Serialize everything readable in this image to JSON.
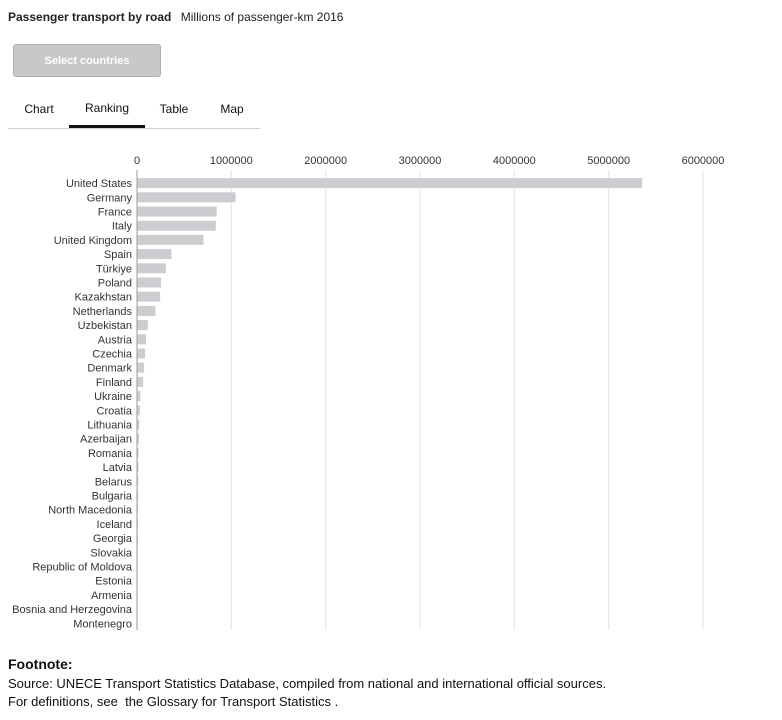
{
  "header": {
    "title": "Passenger transport by road",
    "subtitle": "Millions of passenger-km 2016"
  },
  "controls": {
    "select_label": "Select countries"
  },
  "tabs": [
    {
      "label": "Chart",
      "active": false
    },
    {
      "label": "Ranking",
      "active": true
    },
    {
      "label": "Table",
      "active": false
    },
    {
      "label": "Map",
      "active": false
    }
  ],
  "chart_data": {
    "type": "bar",
    "orientation": "horizontal",
    "categories": [
      "United States",
      "Germany",
      "France",
      "Italy",
      "United Kingdom",
      "Spain",
      "Türkiye",
      "Poland",
      "Kazakhstan",
      "Netherlands",
      "Uzbekistan",
      "Austria",
      "Czechia",
      "Denmark",
      "Finland",
      "Ukraine",
      "Croatia",
      "Lithuania",
      "Azerbaijan",
      "Romania",
      "Latvia",
      "Belarus",
      "Bulgaria",
      "North Macedonia",
      "Iceland",
      "Georgia",
      "Slovakia",
      "Republic of Moldova",
      "Estonia",
      "Armenia",
      "Bosnia and Herzegovina",
      "Montenegro"
    ],
    "values": [
      5350000,
      1040000,
      840000,
      830000,
      700000,
      360000,
      300000,
      250000,
      240000,
      190000,
      110000,
      90000,
      80000,
      70000,
      60000,
      30000,
      25000,
      20000,
      15000,
      12000,
      10000,
      8000,
      7000,
      5000,
      4000,
      4000,
      3000,
      3000,
      2000,
      2000,
      1000,
      500
    ],
    "xlim": [
      0,
      6000000
    ],
    "xticks": [
      "0",
      "1000000",
      "2000000",
      "3000000",
      "4000000",
      "5000000",
      "6000000"
    ],
    "tick_values": [
      0,
      1000000,
      2000000,
      3000000,
      4000000,
      5000000,
      6000000
    ],
    "grid": true,
    "bar_color": "#cccdd1"
  },
  "footnote": {
    "title": "Footnote:",
    "source": "Source: UNECE Transport Statistics Database, compiled from national and international official sources.",
    "definitions_prefix": "For definitions, see",
    "definitions_link": "the Glossary for Transport Statistics",
    "definitions_suffix": "."
  }
}
